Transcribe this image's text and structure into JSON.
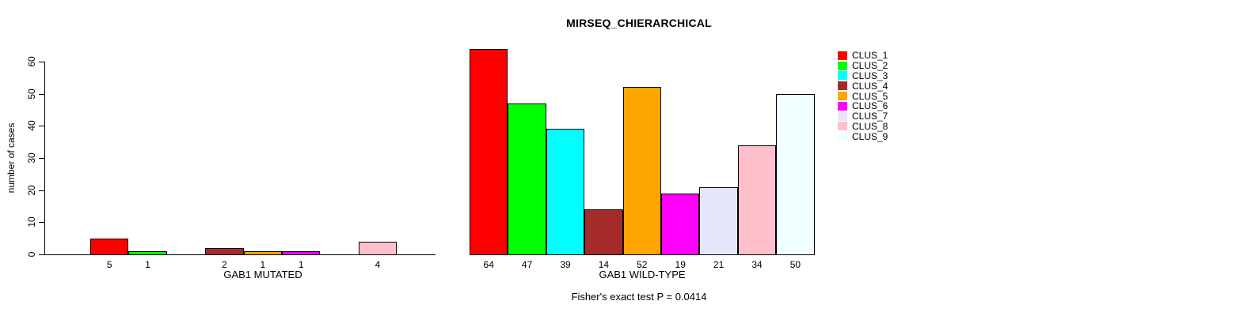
{
  "title": "MIRSEQ_CHIERARCHICAL",
  "footer": "Fisher's exact test P = 0.0414",
  "chart_data": {
    "type": "bar",
    "title": "MIRSEQ_CHIERARCHICAL",
    "ylabel": "number of cases",
    "ylim": [
      0,
      60
    ],
    "yticks": [
      0,
      10,
      20,
      30,
      40,
      50,
      60
    ],
    "grid": false,
    "bar_borders": "black",
    "value_labels": "shown below each nonzero bar",
    "legend_position": "top-right",
    "categories": [
      "CLUS_1",
      "CLUS_2",
      "CLUS_3",
      "CLUS_4",
      "CLUS_5",
      "CLUS_6",
      "CLUS_7",
      "CLUS_8",
      "CLUS_9"
    ],
    "colors": [
      "#FF0000",
      "#00FF00",
      "#00FFFF",
      "#A52A2A",
      "#FFA500",
      "#FF00FF",
      "#E6E6FA",
      "#FFC0CB",
      "#F0FFFF"
    ],
    "series": [
      {
        "name": "GAB1 MUTATED",
        "values": [
          5,
          1,
          0,
          2,
          1,
          1,
          0,
          4,
          0
        ]
      },
      {
        "name": "GAB1 WILD-TYPE",
        "values": [
          64,
          47,
          39,
          14,
          52,
          19,
          21,
          34,
          50
        ]
      }
    ],
    "annotation": "Fisher's exact test P = 0.0414"
  }
}
